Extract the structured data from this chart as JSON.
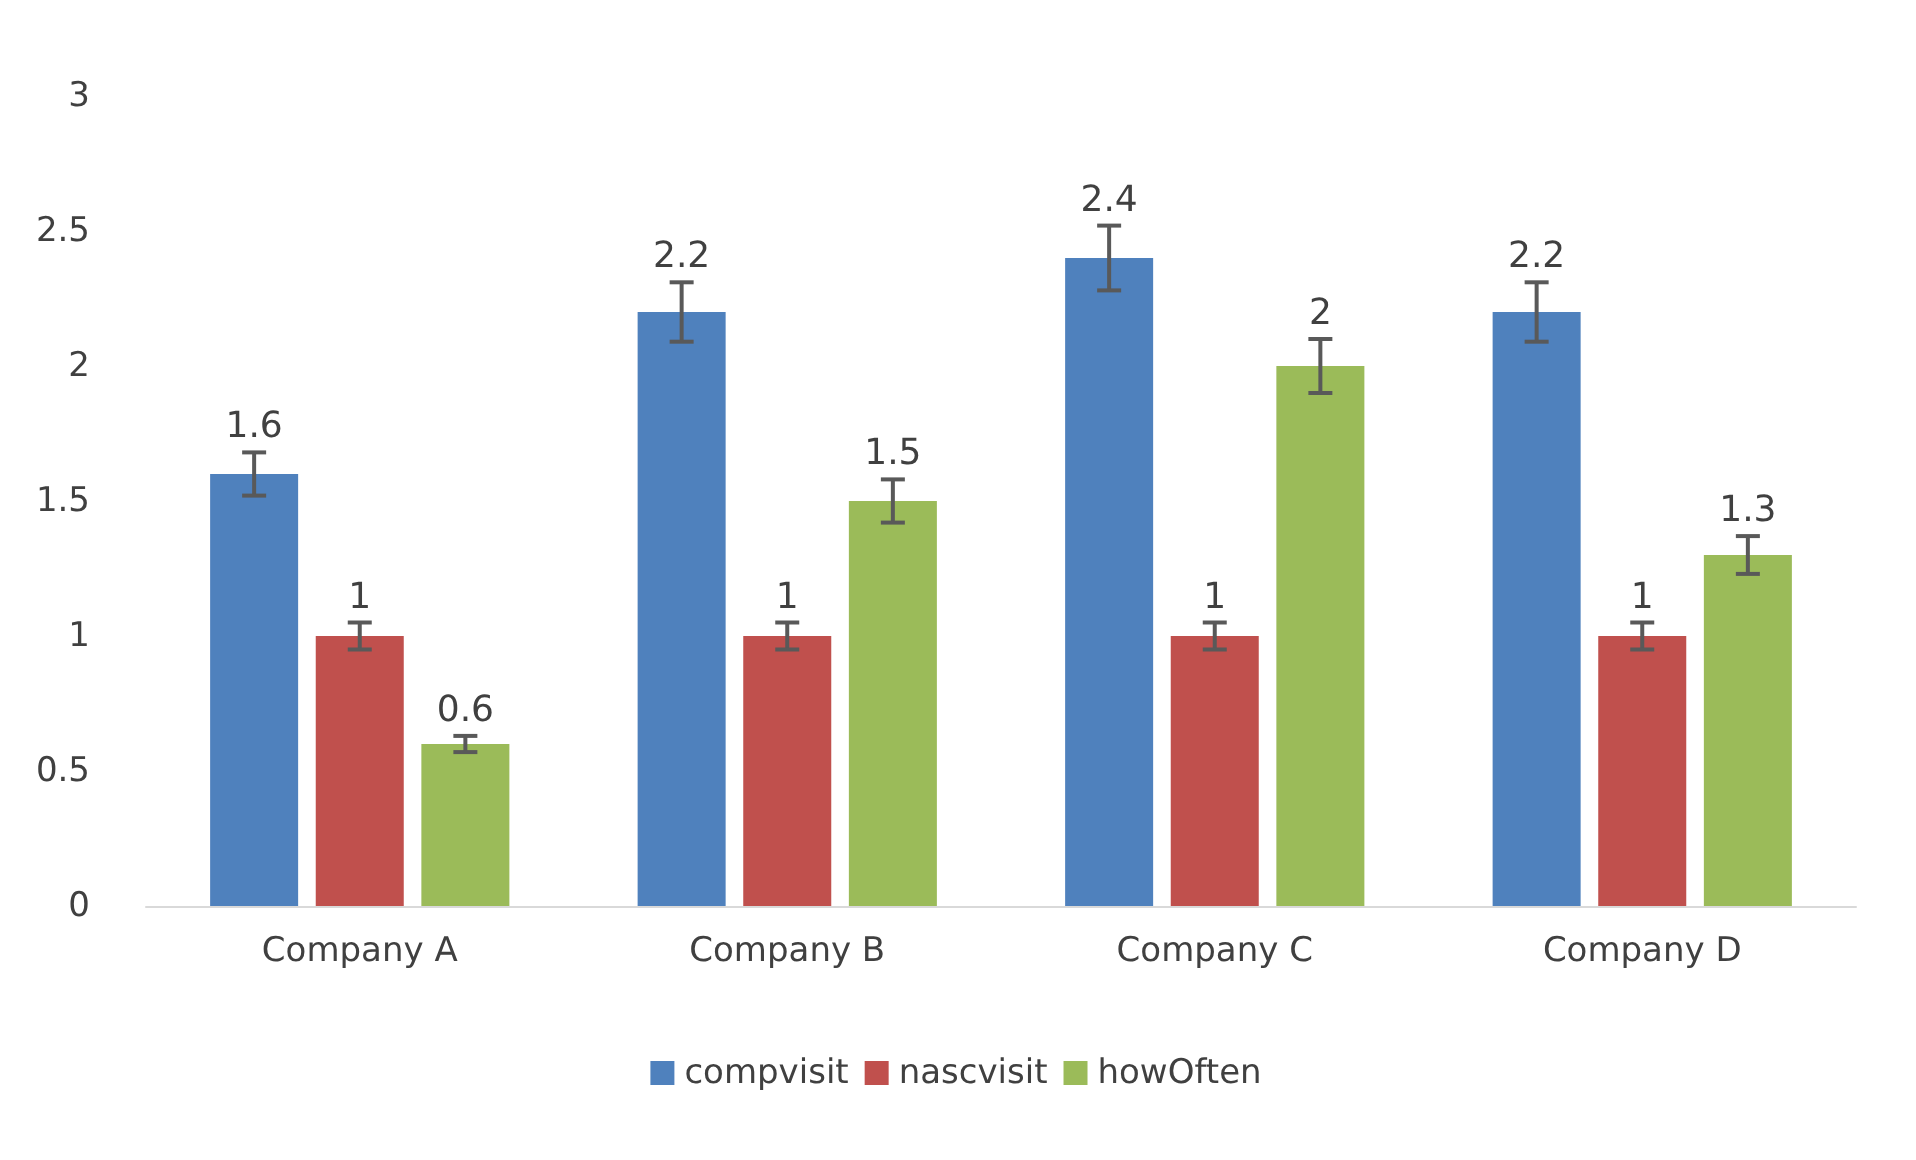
{
  "chart_data": {
    "type": "bar",
    "categories": [
      "Company A",
      "Company B",
      "Company C",
      "Company D"
    ],
    "series": [
      {
        "name": "compvisit",
        "color": "#4f81bd",
        "values": [
          1.6,
          2.2,
          2.4,
          2.2
        ],
        "errors": [
          0.08,
          0.11,
          0.12,
          0.11
        ]
      },
      {
        "name": "nascvisit",
        "color": "#c0504d",
        "values": [
          1,
          1,
          1,
          1
        ],
        "errors": [
          0.05,
          0.05,
          0.05,
          0.05
        ]
      },
      {
        "name": "howOften",
        "color": "#9bbb59",
        "values": [
          0.6,
          1.5,
          2,
          1.3
        ],
        "errors": [
          0.03,
          0.08,
          0.1,
          0.07
        ]
      }
    ],
    "ylim": [
      0,
      3
    ],
    "yticks": [
      0,
      0.5,
      1,
      1.5,
      2,
      2.5,
      3
    ],
    "grid": false,
    "legend": "bottom",
    "data_labels": true
  }
}
